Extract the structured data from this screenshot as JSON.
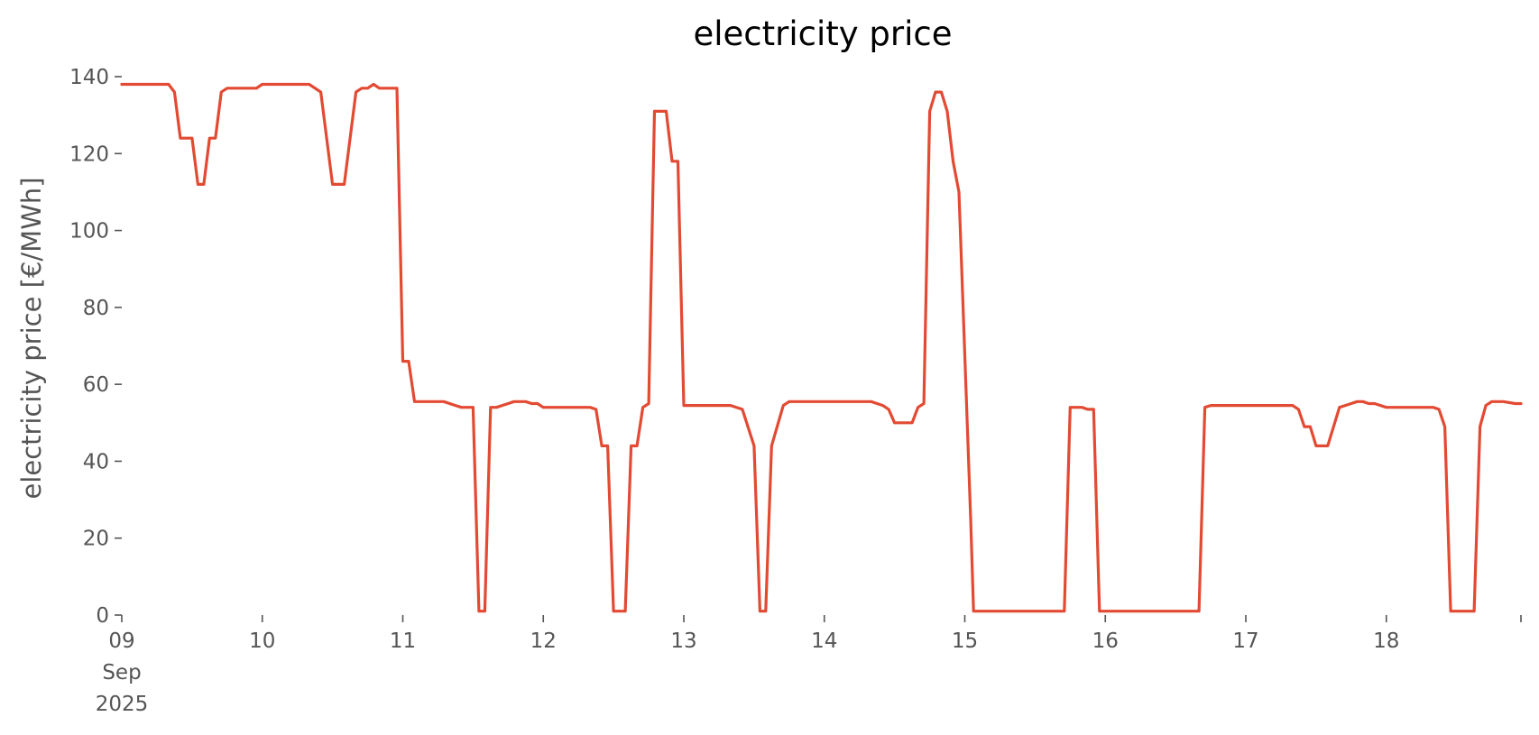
{
  "chart_data": {
    "type": "line",
    "title": "electricity price",
    "xlabel": "",
    "ylabel": "electricity price [€/MWh]",
    "x_unit": "hours since 2025-09-09 00:00",
    "xlim": [
      0,
      239
    ],
    "ylim": [
      0,
      140
    ],
    "grid": false,
    "legend": "none",
    "colors": {
      "line": "#E24A33",
      "tick": "#555555",
      "title": "#000000"
    },
    "y_ticks": [
      0,
      20,
      40,
      60,
      80,
      100,
      120,
      140
    ],
    "x_ticks": [
      {
        "hour": 0,
        "lines": [
          "09",
          "Sep",
          "2025"
        ]
      },
      {
        "hour": 24,
        "lines": [
          "10"
        ]
      },
      {
        "hour": 48,
        "lines": [
          "11"
        ]
      },
      {
        "hour": 72,
        "lines": [
          "12"
        ]
      },
      {
        "hour": 96,
        "lines": [
          "13"
        ]
      },
      {
        "hour": 120,
        "lines": [
          "14"
        ]
      },
      {
        "hour": 144,
        "lines": [
          "15"
        ]
      },
      {
        "hour": 168,
        "lines": [
          "16"
        ]
      },
      {
        "hour": 192,
        "lines": [
          "17"
        ]
      },
      {
        "hour": 216,
        "lines": [
          "18"
        ]
      },
      {
        "hour": 239,
        "lines": [
          ""
        ]
      }
    ],
    "series": [
      {
        "name": "",
        "points": [
          [
            0,
            138
          ],
          [
            8,
            138
          ],
          [
            9,
            136
          ],
          [
            10,
            124
          ],
          [
            12,
            124
          ],
          [
            13,
            112
          ],
          [
            14,
            112
          ],
          [
            15,
            124
          ],
          [
            16,
            124
          ],
          [
            17,
            136
          ],
          [
            18,
            137
          ],
          [
            23,
            137
          ],
          [
            24,
            138
          ],
          [
            32,
            138
          ],
          [
            34,
            136
          ],
          [
            36,
            112
          ],
          [
            38,
            112
          ],
          [
            40,
            136
          ],
          [
            41,
            137
          ],
          [
            42,
            137
          ],
          [
            43,
            138
          ],
          [
            44,
            137
          ],
          [
            47,
            137
          ],
          [
            48,
            66
          ],
          [
            49,
            66
          ],
          [
            50,
            55.5
          ],
          [
            55,
            55.5
          ],
          [
            57,
            54.5
          ],
          [
            58,
            54
          ],
          [
            60,
            54
          ],
          [
            61,
            1
          ],
          [
            62,
            1
          ],
          [
            63,
            54
          ],
          [
            64,
            54
          ],
          [
            66,
            55
          ],
          [
            67,
            55.5
          ],
          [
            69,
            55.5
          ],
          [
            70,
            55
          ],
          [
            71,
            55
          ],
          [
            72,
            54
          ],
          [
            80,
            54
          ],
          [
            81,
            53.5
          ],
          [
            82,
            44
          ],
          [
            83,
            44
          ],
          [
            84,
            1
          ],
          [
            86,
            1
          ],
          [
            87,
            44
          ],
          [
            88,
            44
          ],
          [
            89,
            54
          ],
          [
            90,
            55
          ],
          [
            91,
            131
          ],
          [
            93,
            131
          ],
          [
            94,
            118
          ],
          [
            95,
            118
          ],
          [
            96,
            54.5
          ],
          [
            104,
            54.5
          ],
          [
            106,
            53.5
          ],
          [
            108,
            44
          ],
          [
            109,
            1
          ],
          [
            110,
            1
          ],
          [
            111,
            44
          ],
          [
            113,
            54.5
          ],
          [
            114,
            55.5
          ],
          [
            128,
            55.5
          ],
          [
            130,
            54.5
          ],
          [
            131,
            53.5
          ],
          [
            132,
            50
          ],
          [
            135,
            50
          ],
          [
            136,
            54
          ],
          [
            137,
            55
          ],
          [
            138,
            131
          ],
          [
            139,
            136
          ],
          [
            140,
            136
          ],
          [
            141,
            131
          ],
          [
            142,
            118
          ],
          [
            143,
            110
          ],
          [
            145,
            25
          ],
          [
            145.5,
            1
          ],
          [
            161,
            1
          ],
          [
            162,
            54
          ],
          [
            163,
            54
          ],
          [
            164,
            54
          ],
          [
            165,
            53.5
          ],
          [
            166,
            53.5
          ],
          [
            167,
            1
          ],
          [
            184,
            1
          ],
          [
            185,
            54
          ],
          [
            186,
            54.5
          ],
          [
            200,
            54.5
          ],
          [
            201,
            53.5
          ],
          [
            202,
            49
          ],
          [
            203,
            49
          ],
          [
            204,
            44
          ],
          [
            206,
            44
          ],
          [
            208,
            54
          ],
          [
            209,
            54.5
          ],
          [
            210,
            55
          ],
          [
            211,
            55.5
          ],
          [
            212,
            55.5
          ],
          [
            213,
            55
          ],
          [
            214,
            55
          ],
          [
            216,
            54
          ],
          [
            224,
            54
          ],
          [
            225,
            53.5
          ],
          [
            226,
            49
          ],
          [
            227,
            1
          ],
          [
            231,
            1
          ],
          [
            232,
            49
          ],
          [
            233,
            54.5
          ],
          [
            234,
            55.5
          ],
          [
            236,
            55.5
          ],
          [
            238,
            55
          ],
          [
            239,
            55
          ]
        ]
      }
    ]
  }
}
